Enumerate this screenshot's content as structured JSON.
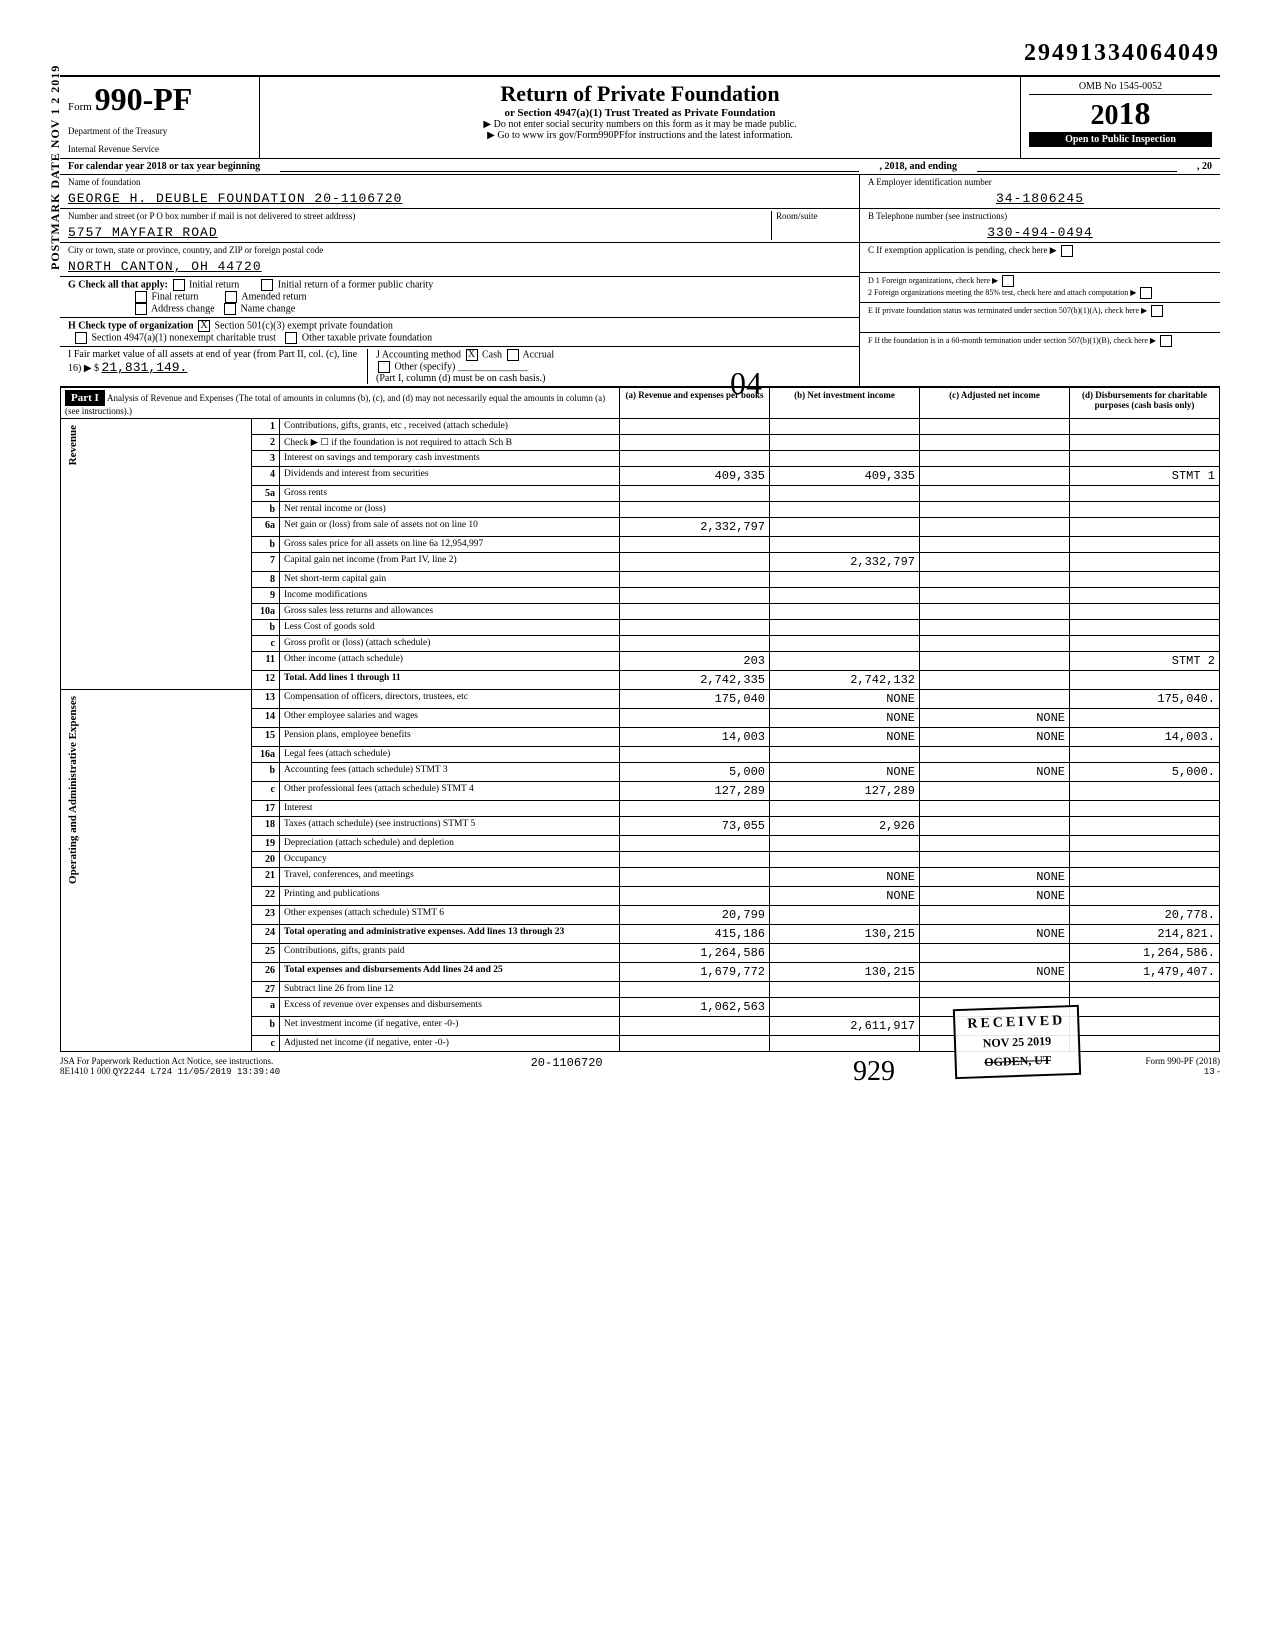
{
  "top_number": "29491334064049",
  "form": {
    "prefix": "Form",
    "number": "990-PF",
    "dept1": "Department of the Treasury",
    "dept2": "Internal Revenue Service",
    "title": "Return of Private Foundation",
    "subtitle": "or Section 4947(a)(1) Trust Treated as Private Foundation",
    "instruction1": "▶ Do not enter social security numbers on this form as it may be made public.",
    "instruction2": "▶ Go to www irs gov/Form990PFfor instructions and the latest information.",
    "omb": "OMB No 1545-0052",
    "year_prefix": "20",
    "year_suffix": "18",
    "inspection": "Open to Public Inspection"
  },
  "cal_year": {
    "prefix": "For calendar year 2018 or tax year beginning",
    "mid": ", 2018, and ending",
    "suffix": ", 20"
  },
  "foundation": {
    "name_label": "Name of foundation",
    "name": "GEORGE H. DEUBLE FOUNDATION 20-1106720",
    "address_label": "Number and street (or P O box number if mail is not delivered to street address)",
    "address": "5757 MAYFAIR ROAD",
    "city_label": "City or town, state or province, country, and ZIP or foreign postal code",
    "city": "NORTH CANTON, OH 44720",
    "room_label": "Room/suite",
    "ein_label": "A Employer identification number",
    "ein": "34-1806245",
    "phone_label": "B Telephone number (see instructions)",
    "phone": "330-494-0494",
    "exemption_label": "C If exemption application is pending, check here",
    "d1": "D 1 Foreign organizations, check here",
    "d2": "2 Foreign organizations meeting the 85% test, check here and attach computation",
    "e": "E If private foundation status was terminated under section 507(b)(1)(A), check here",
    "f": "F If the foundation is in a 60-month termination under section 507(b)(1)(B), check here"
  },
  "checks": {
    "g_label": "G Check all that apply:",
    "initial": "Initial return",
    "initial_former": "Initial return of a former public charity",
    "final": "Final return",
    "amended": "Amended return",
    "address_change": "Address change",
    "name_change": "Name change",
    "h_label": "H Check type of organization",
    "h_501c3": "Section 501(c)(3) exempt private foundation",
    "h_4947": "Section 4947(a)(1) nonexempt charitable trust",
    "h_other": "Other taxable private foundation",
    "i_label": "I Fair market value of all assets at end of year (from Part II, col. (c), line 16) ▶ $",
    "i_value": "21,831,149.",
    "j_label": "J Accounting method",
    "j_cash": "Cash",
    "j_accrual": "Accrual",
    "j_other": "Other (specify)",
    "j_note": "(Part I, column (d) must be on cash basis.)"
  },
  "part1": {
    "header": "Part I",
    "title": "Analysis of Revenue and Expenses (The total of amounts in columns (b), (c), and (d) may not necessarily equal the amounts in column (a) (see instructions).)",
    "col_a": "(a) Revenue and expenses per books",
    "col_b": "(b) Net investment income",
    "col_c": "(c) Adjusted net income",
    "col_d": "(d) Disbursements for charitable purposes (cash basis only)"
  },
  "side_labels": {
    "revenue": "Revenue",
    "op_admin": "Operating and Administrative Expenses"
  },
  "rows": [
    {
      "n": "1",
      "desc": "Contributions, gifts, grants, etc , received (attach schedule)",
      "a": "",
      "b": "",
      "c": "",
      "d": ""
    },
    {
      "n": "2",
      "desc": "Check ▶ ☐ if the foundation is not required to attach Sch B",
      "a": "",
      "b": "",
      "c": "",
      "d": ""
    },
    {
      "n": "3",
      "desc": "Interest on savings and temporary cash investments",
      "a": "",
      "b": "",
      "c": "",
      "d": ""
    },
    {
      "n": "4",
      "desc": "Dividends and interest from securities",
      "a": "409,335",
      "b": "409,335",
      "c": "",
      "d": "STMT 1"
    },
    {
      "n": "5a",
      "desc": "Gross rents",
      "a": "",
      "b": "",
      "c": "",
      "d": ""
    },
    {
      "n": "b",
      "desc": "Net rental income or (loss)",
      "a": "",
      "b": "",
      "c": "",
      "d": ""
    },
    {
      "n": "6a",
      "desc": "Net gain or (loss) from sale of assets not on line 10",
      "a": "2,332,797",
      "b": "",
      "c": "",
      "d": ""
    },
    {
      "n": "b",
      "desc": "Gross sales price for all assets on line 6a    12,954,997",
      "a": "",
      "b": "",
      "c": "",
      "d": ""
    },
    {
      "n": "7",
      "desc": "Capital gain net income (from Part IV, line 2)",
      "a": "",
      "b": "2,332,797",
      "c": "",
      "d": ""
    },
    {
      "n": "8",
      "desc": "Net short-term capital gain",
      "a": "",
      "b": "",
      "c": "",
      "d": ""
    },
    {
      "n": "9",
      "desc": "Income modifications",
      "a": "",
      "b": "",
      "c": "",
      "d": ""
    },
    {
      "n": "10a",
      "desc": "Gross sales less returns and allowances",
      "a": "",
      "b": "",
      "c": "",
      "d": ""
    },
    {
      "n": "b",
      "desc": "Less Cost of goods sold",
      "a": "",
      "b": "",
      "c": "",
      "d": ""
    },
    {
      "n": "c",
      "desc": "Gross profit or (loss) (attach schedule)",
      "a": "",
      "b": "",
      "c": "",
      "d": ""
    },
    {
      "n": "11",
      "desc": "Other income (attach schedule)",
      "a": "203",
      "b": "",
      "c": "",
      "d": "STMT 2"
    },
    {
      "n": "12",
      "desc": "Total. Add lines 1 through 11",
      "a": "2,742,335",
      "b": "2,742,132",
      "c": "",
      "d": "",
      "bold": true
    },
    {
      "n": "13",
      "desc": "Compensation of officers, directors, trustees, etc",
      "a": "175,040",
      "b": "NONE",
      "c": "",
      "d": "175,040."
    },
    {
      "n": "14",
      "desc": "Other employee salaries and wages",
      "a": "",
      "b": "NONE",
      "c": "NONE",
      "d": ""
    },
    {
      "n": "15",
      "desc": "Pension plans, employee benefits",
      "a": "14,003",
      "b": "NONE",
      "c": "NONE",
      "d": "14,003."
    },
    {
      "n": "16a",
      "desc": "Legal fees (attach schedule)",
      "a": "",
      "b": "",
      "c": "",
      "d": ""
    },
    {
      "n": "b",
      "desc": "Accounting fees (attach schedule) STMT 3",
      "a": "5,000",
      "b": "NONE",
      "c": "NONE",
      "d": "5,000."
    },
    {
      "n": "c",
      "desc": "Other professional fees (attach schedule) STMT 4",
      "a": "127,289",
      "b": "127,289",
      "c": "",
      "d": ""
    },
    {
      "n": "17",
      "desc": "Interest",
      "a": "",
      "b": "",
      "c": "",
      "d": ""
    },
    {
      "n": "18",
      "desc": "Taxes (attach schedule) (see instructions) STMT 5",
      "a": "73,055",
      "b": "2,926",
      "c": "",
      "d": ""
    },
    {
      "n": "19",
      "desc": "Depreciation (attach schedule) and depletion",
      "a": "",
      "b": "",
      "c": "",
      "d": ""
    },
    {
      "n": "20",
      "desc": "Occupancy",
      "a": "",
      "b": "",
      "c": "",
      "d": ""
    },
    {
      "n": "21",
      "desc": "Travel, conferences, and meetings",
      "a": "",
      "b": "NONE",
      "c": "NONE",
      "d": ""
    },
    {
      "n": "22",
      "desc": "Printing and publications",
      "a": "",
      "b": "NONE",
      "c": "NONE",
      "d": ""
    },
    {
      "n": "23",
      "desc": "Other expenses (attach schedule) STMT 6",
      "a": "20,799",
      "b": "",
      "c": "",
      "d": "20,778."
    },
    {
      "n": "24",
      "desc": "Total operating and administrative expenses. Add lines 13 through 23",
      "a": "415,186",
      "b": "130,215",
      "c": "NONE",
      "d": "214,821.",
      "bold": true
    },
    {
      "n": "25",
      "desc": "Contributions, gifts, grants paid",
      "a": "1,264,586",
      "b": "",
      "c": "",
      "d": "1,264,586."
    },
    {
      "n": "26",
      "desc": "Total expenses and disbursements Add lines 24 and 25",
      "a": "1,679,772",
      "b": "130,215",
      "c": "NONE",
      "d": "1,479,407.",
      "bold": true
    },
    {
      "n": "27",
      "desc": "Subtract line 26 from line 12",
      "a": "",
      "b": "",
      "c": "",
      "d": ""
    },
    {
      "n": "a",
      "desc": "Excess of revenue over expenses and disbursements",
      "a": "1,062,563",
      "b": "",
      "c": "",
      "d": ""
    },
    {
      "n": "b",
      "desc": "Net investment income (if negative, enter -0-)",
      "a": "",
      "b": "2,611,917",
      "c": "",
      "d": ""
    },
    {
      "n": "c",
      "desc": "Adjusted net income (if negative, enter -0-)",
      "a": "",
      "b": "",
      "c": "",
      "d": ""
    }
  ],
  "received": {
    "title": "RECEIVED",
    "date": "NOV 25 2019",
    "loc": "OGDEN, UT"
  },
  "side_stamp": "POSTMARK DATE NOV 1 2 2019",
  "footer": {
    "paperwork": "JSA For Paperwork Reduction Act Notice, see instructions.",
    "code": "8E1410 1 000",
    "file": "QY2244 L724 11/05/2019 13:39:40",
    "ein": "20-1106720",
    "form": "Form 990-PF (2018)",
    "page": "13"
  },
  "handwritten": {
    "zero4": "04",
    "sig": "929"
  }
}
